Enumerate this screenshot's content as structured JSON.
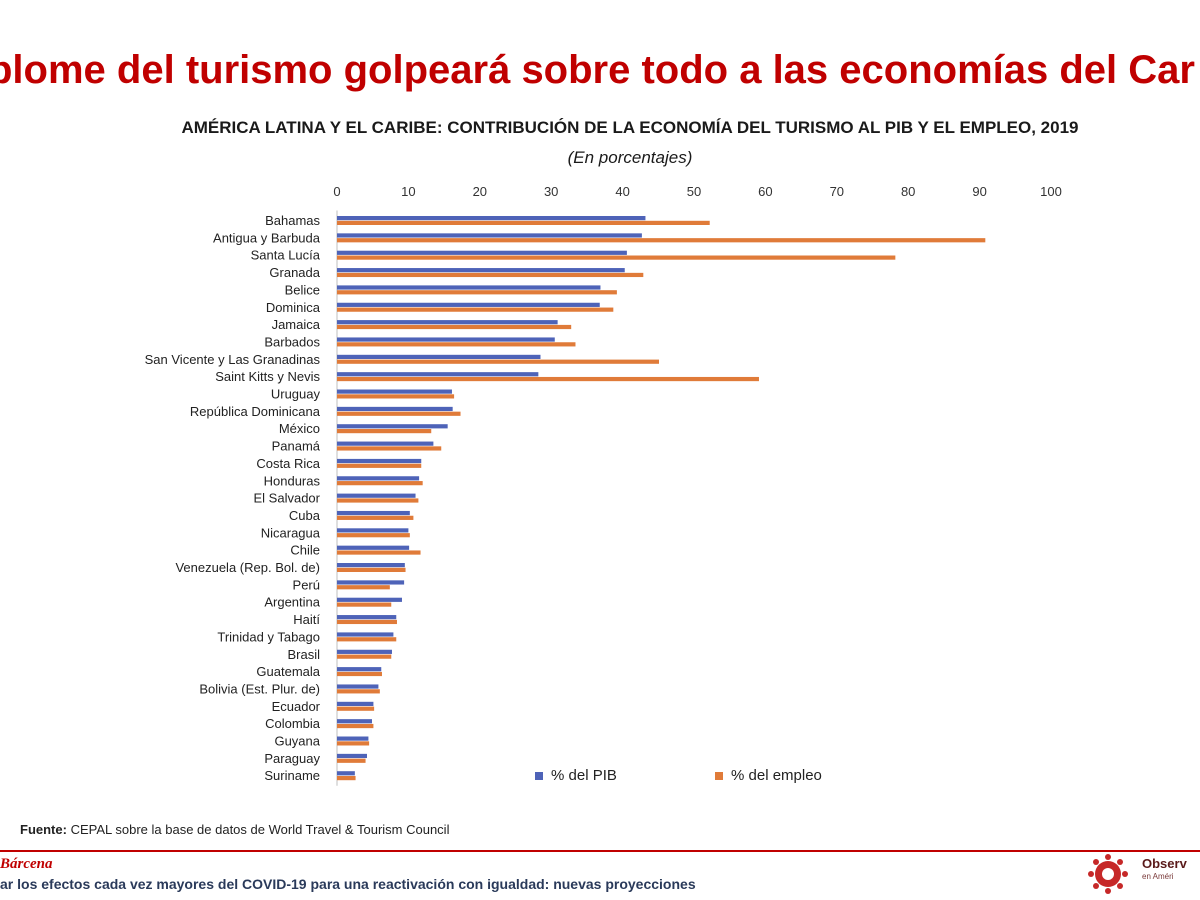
{
  "headline": "plome del turismo golpeará sobre todo a las economías del Car",
  "source": {
    "label": "Fuente:",
    "text": "CEPAL sobre la base de datos de World Travel & Tourism Council"
  },
  "footer": {
    "author": "Bárcena",
    "text": "ar los efectos cada vez mayores del COVID-19 para una reactivación con igualdad: nuevas proyecciones",
    "logo_text": "Observ",
    "logo_sub": "en Améri"
  },
  "colors": {
    "pib": "#4e63b8",
    "empleo": "#e07b39",
    "headline": "#c00000"
  },
  "chart_data": {
    "type": "bar",
    "orientation": "horizontal",
    "title": "AMÉRICA LATINA Y EL CARIBE: CONTRIBUCIÓN DE LA ECONOMÍA DEL TURISMO AL PIB Y EL EMPLEO, 2019",
    "subtitle": "(En porcentajes)",
    "xlim": [
      0,
      100
    ],
    "xticks": [
      0,
      10,
      20,
      30,
      40,
      50,
      60,
      70,
      80,
      90,
      100
    ],
    "axis_position": "top",
    "legend_position": "bottom-right",
    "categories": [
      "Bahamas",
      "Antigua y Barbuda",
      "Santa Lucía",
      "Granada",
      "Belice",
      "Dominica",
      "Jamaica",
      "Barbados",
      "San Vicente y Las Granadinas",
      "Saint Kitts y Nevis",
      "Uruguay",
      "República Dominicana",
      "México",
      "Panamá",
      "Costa Rica",
      "Honduras",
      "El Salvador",
      "Cuba",
      "Nicaragua",
      "Chile",
      "Venezuela (Rep. Bol. de)",
      "Perú",
      "Argentina",
      "Haití",
      "Trinidad y Tabago",
      "Brasil",
      "Guatemala",
      "Bolivia (Est. Plur. de)",
      "Ecuador",
      "Colombia",
      "Guyana",
      "Paraguay",
      "Suriname"
    ],
    "series": [
      {
        "name": "% del PIB",
        "values": [
          43.2,
          42.7,
          40.6,
          40.3,
          36.9,
          36.8,
          30.9,
          30.5,
          28.5,
          28.2,
          16.1,
          16.2,
          15.5,
          13.5,
          11.8,
          11.5,
          11.0,
          10.2,
          10.0,
          10.1,
          9.5,
          9.4,
          9.1,
          8.3,
          7.9,
          7.7,
          6.2,
          5.8,
          5.1,
          4.9,
          4.4,
          4.2,
          2.5
        ]
      },
      {
        "name": "% del empleo",
        "values": [
          52.2,
          90.8,
          78.2,
          42.9,
          39.2,
          38.7,
          32.8,
          33.4,
          45.1,
          59.1,
          16.4,
          17.3,
          13.2,
          14.6,
          11.8,
          12.0,
          11.4,
          10.7,
          10.2,
          11.7,
          9.6,
          7.4,
          7.6,
          8.4,
          8.3,
          7.6,
          6.3,
          6.0,
          5.2,
          5.1,
          4.5,
          4.0,
          2.6
        ]
      }
    ]
  }
}
